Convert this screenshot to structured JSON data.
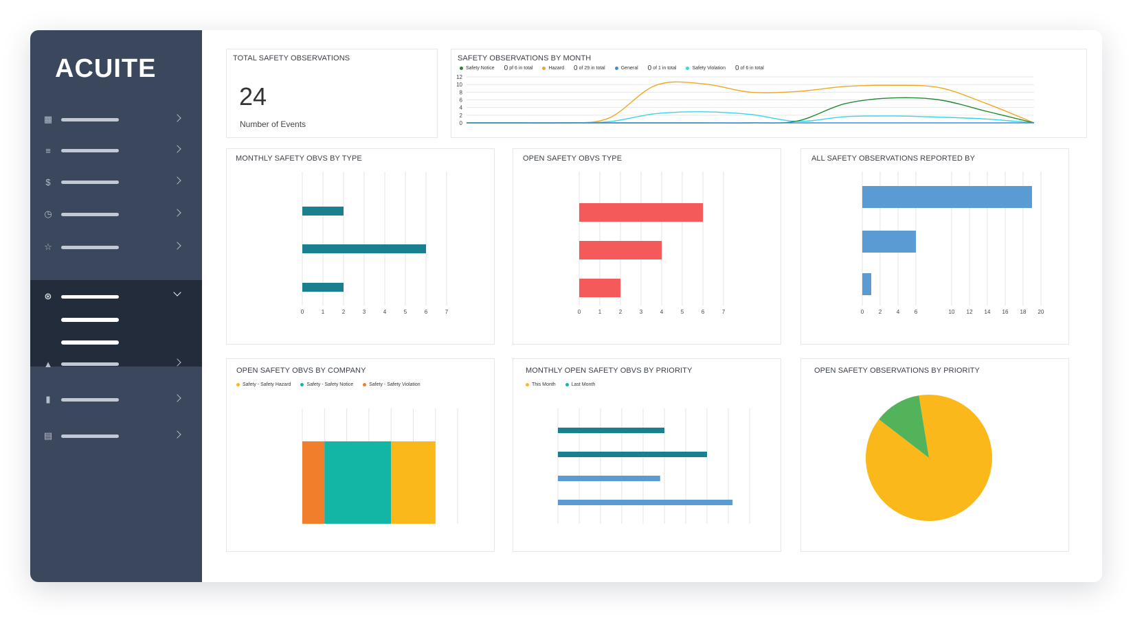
{
  "app": {
    "brand": "ACUITE",
    "nav_items": [
      {
        "icon": "dashboard-icon",
        "glyph": "▦"
      },
      {
        "icon": "list-icon",
        "glyph": "≡"
      },
      {
        "icon": "dollar-icon",
        "glyph": "$"
      },
      {
        "icon": "clock-icon",
        "glyph": "◷"
      },
      {
        "icon": "star-icon",
        "glyph": "☆"
      },
      {
        "icon": "safety-icon",
        "glyph": "⊛"
      },
      {
        "icon": "warning-icon",
        "glyph": "▲"
      },
      {
        "icon": "file-icon",
        "glyph": "▮"
      },
      {
        "icon": "document-icon",
        "glyph": "▤"
      }
    ]
  },
  "total": {
    "title": "TOTAL SAFETY OBSERVATIONS",
    "value": "24",
    "caption": "Number of Events"
  },
  "by_month": {
    "title": "SAFETY OBSERVATIONS BY MONTH",
    "legend": [
      {
        "name": "Safety Notice",
        "color": "#1e8a2e",
        "count": "0",
        "count_text": "pf 6 in total"
      },
      {
        "name": "Hazard",
        "color": "#f2a720",
        "count": "0",
        "count_text": "of 29 in total"
      },
      {
        "name": "General",
        "color": "#3f8fd0",
        "count": "0",
        "count_text": "of 1 in total"
      },
      {
        "name": "Safety Violation",
        "color": "#36d6e8",
        "count": "0",
        "count_text": "of 6 in total"
      }
    ]
  },
  "chart_data": [
    {
      "type": "line",
      "title": "SAFETY OBSERVATIONS BY MONTH",
      "x": [
        0,
        1,
        2,
        3,
        4,
        5,
        6,
        7,
        8,
        9,
        10,
        11,
        12
      ],
      "yticks": [
        "0",
        "2",
        "4",
        "6",
        "8",
        "10",
        "12"
      ],
      "ylim": [
        0,
        12
      ],
      "series": [
        {
          "name": "Hazard",
          "color": "#f2a720",
          "values": [
            0,
            0,
            0,
            1.2,
            9.8,
            10.2,
            8,
            8.2,
            9.5,
            9.8,
            9.2,
            5,
            0
          ]
        },
        {
          "name": "Safety Violation",
          "color": "#36d6e8",
          "values": [
            0,
            0,
            0,
            0.3,
            2.4,
            2.9,
            2.2,
            0.4,
            1.6,
            1.8,
            1.5,
            1,
            0
          ]
        },
        {
          "name": "Safety Notice",
          "color": "#1e8a2e",
          "values": [
            0,
            0,
            0,
            0,
            0,
            0,
            0,
            0.5,
            5,
            6.5,
            6,
            3,
            0
          ]
        },
        {
          "name": "General",
          "color": "#3f8fd0",
          "values": [
            0,
            0,
            0,
            0,
            0,
            0,
            0,
            0,
            0,
            0,
            0,
            0,
            0
          ]
        }
      ]
    },
    {
      "type": "bar",
      "title": "MONTHLY SAFETY OBVS BY TYPE",
      "orientation": "horizontal",
      "values": [
        2,
        6,
        2
      ],
      "xticks": [
        "0",
        "1",
        "2",
        "3",
        "4",
        "5",
        "6",
        "7"
      ],
      "xlim": [
        0,
        7
      ],
      "color": "#1a7f8e"
    },
    {
      "type": "bar",
      "title": "OPEN SAFETY OBVS TYPE",
      "orientation": "horizontal",
      "values": [
        6,
        4,
        2
      ],
      "xticks": [
        "0",
        "1",
        "2",
        "3",
        "4",
        "5",
        "6",
        "7"
      ],
      "xlim": [
        0,
        7
      ],
      "color": "#f55a5a"
    },
    {
      "type": "bar",
      "title": "ALL SAFETY OBSERVATIONS REPORTED BY",
      "orientation": "horizontal",
      "values": [
        19,
        6,
        1
      ],
      "xticks": [
        "0",
        "2",
        "4",
        "6",
        "10",
        "12",
        "14",
        "16",
        "18",
        "20"
      ],
      "xlim": [
        0,
        20
      ],
      "color": "#5a9bd3"
    },
    {
      "type": "bar",
      "title": "OPEN SAFETY OBVS BY COMPANY",
      "orientation": "vertical-stacked",
      "series": [
        {
          "name": "Safety - Safety Violation",
          "color": "#f07e2a",
          "value": 1
        },
        {
          "name": "Safety - Safety Notice",
          "color": "#13b5a5",
          "value": 3
        },
        {
          "name": "Safety - Safety Hazard",
          "color": "#fbb81a",
          "value": 2
        }
      ],
      "legend": [
        {
          "name": "Safety - Safety Hazard",
          "color": "#fbb81a"
        },
        {
          "name": "Safety - Safety Notice",
          "color": "#13b5a5"
        },
        {
          "name": "Safety - Safety Violation",
          "color": "#f07e2a"
        }
      ]
    },
    {
      "type": "bar",
      "title": "MONTHLY OPEN SAFETY OBVS BY PRIORITY",
      "orientation": "horizontal",
      "xlim": [
        0,
        10
      ],
      "legend": [
        {
          "name": "This Month",
          "color": "#fbb81a"
        },
        {
          "name": "Last Month",
          "color": "#13b5a5"
        }
      ],
      "bars": [
        {
          "value": 5,
          "color": "#1a7f8e"
        },
        {
          "value": 7,
          "color": "#1a7f8e"
        },
        {
          "value": 4.8,
          "color": "#5a9bd3"
        },
        {
          "value": 8.2,
          "color": "#5a9bd3"
        }
      ]
    },
    {
      "type": "pie",
      "title": "OPEN SAFETY OBSERVATIONS BY PRIORITY",
      "slices": [
        {
          "value": 88,
          "color": "#fbb81a"
        },
        {
          "value": 12,
          "color": "#53b35a"
        }
      ]
    }
  ]
}
